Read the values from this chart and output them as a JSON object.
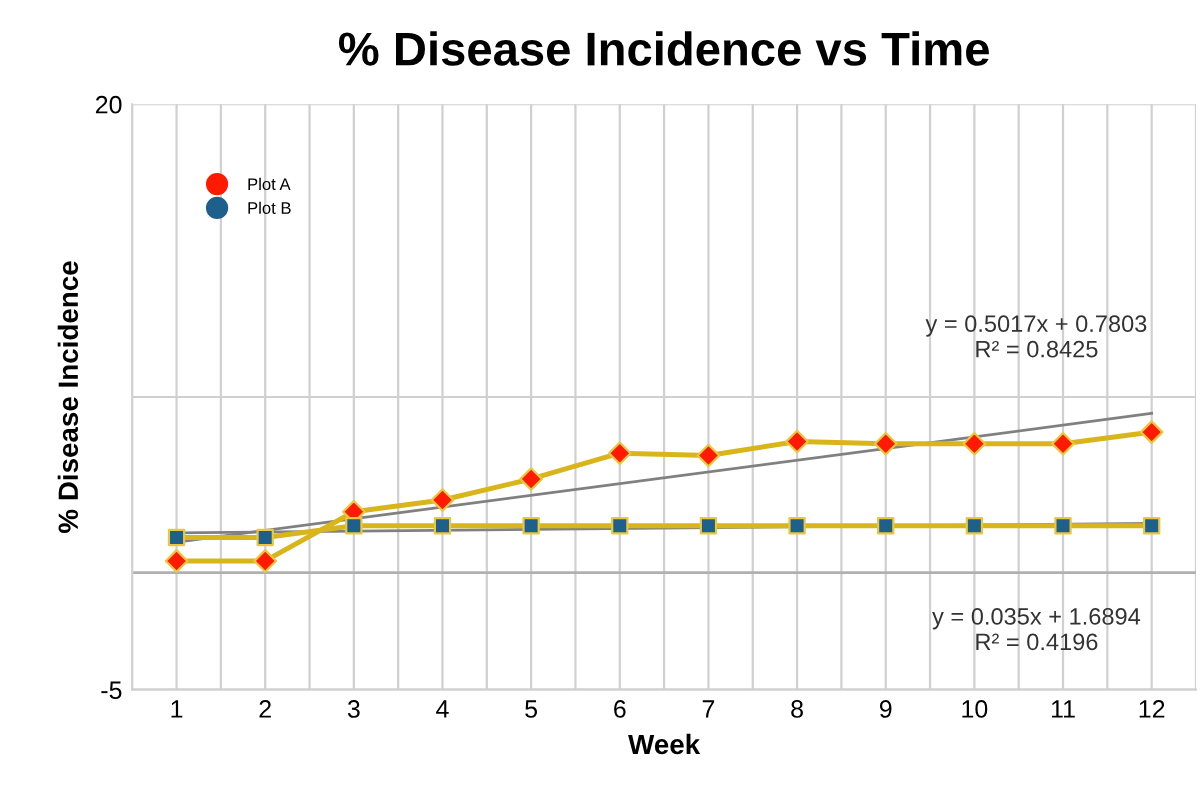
{
  "chart_data": {
    "type": "scatter",
    "title": "% Disease Incidence vs Time",
    "xlabel": "Week",
    "ylabel": "% Disease Incidence",
    "categories": [
      "1",
      "2",
      "3",
      "4",
      "5",
      "6",
      "7",
      "8",
      "9",
      "10",
      "11",
      "12"
    ],
    "series": [
      {
        "type": "line",
        "color": "#d9b51c",
        "values": [
          0.5,
          0.5,
          2.6,
          3.1,
          4.0,
          5.1,
          5.0,
          5.6,
          5.5,
          5.5,
          5.5,
          6.0
        ]
      },
      {
        "type": "line",
        "color": "#d9b51c",
        "values": [
          1.5,
          1.5,
          2.0,
          2.0,
          2.0,
          2.0,
          2.0,
          2.0,
          2.0,
          2.0,
          2.0,
          2.0
        ]
      },
      {
        "type": "line",
        "color": "#808080",
        "x": [
          "1",
          "12"
        ],
        "values": [
          1.3,
          6.8
        ]
      },
      {
        "type": "line",
        "color": "#808080",
        "x": [
          "1",
          "12"
        ],
        "values": [
          1.7,
          2.1
        ]
      },
      {
        "name": "Plot A",
        "color": "#ff1a00",
        "marker": "diamond",
        "values": [
          0.5,
          0.5,
          2.6,
          3.1,
          4.0,
          5.1,
          5.0,
          5.6,
          5.5,
          5.5,
          5.5,
          6.0
        ]
      },
      {
        "name": "Plot B",
        "color": "#1f5f8b",
        "marker": "square",
        "values": [
          1.5,
          1.5,
          2.0,
          2.0,
          2.0,
          2.0,
          2.0,
          2.0,
          2.0,
          2.0,
          2.0,
          2.0
        ]
      }
    ],
    "ylim": [
      -5,
      20
    ],
    "yticks": [
      -5,
      {
        "value": 7.5,
        "label": null
      },
      20
    ],
    "ref_lines": [
      {
        "axis": "y",
        "value": 0,
        "color": "#b0b0b0"
      }
    ],
    "annotations": [
      "y = 0.5017x + 0.7803\nR² = 0.8425",
      "y = 0.035x + 1.6894\nR² = 0.4196"
    ],
    "grid": true,
    "legend": "top left"
  }
}
